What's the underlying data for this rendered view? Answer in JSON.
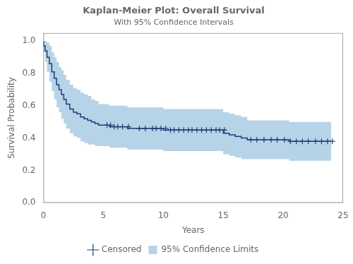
{
  "chart_data": {
    "type": "line",
    "title": "Kaplan-Meier Plot: Overall Survival",
    "subtitle": "With 95% Confidence Intervals",
    "xlabel": "Years",
    "ylabel": "Survival Probability",
    "xlim": [
      0,
      25
    ],
    "ylim": [
      0.0,
      1.05
    ],
    "xticks": [
      0,
      5,
      10,
      15,
      20,
      25
    ],
    "yticks": [
      {
        "value": 0.0,
        "label": "0.0"
      },
      0.2,
      0.4,
      0.6,
      0.8,
      {
        "value": 1.0,
        "label": "1.0"
      }
    ],
    "grid": false,
    "legend": "bottom",
    "x": [
      0.0,
      0.15,
      0.3,
      0.5,
      0.7,
      0.9,
      1.1,
      1.3,
      1.5,
      1.7,
      1.9,
      2.2,
      2.5,
      2.8,
      3.1,
      3.4,
      3.7,
      4.0,
      4.3,
      4.6,
      4.9,
      5.2,
      5.5,
      5.8,
      6.1,
      6.5,
      7.0,
      7.5,
      8.0,
      8.5,
      9.0,
      9.5,
      10.0,
      10.5,
      11.0,
      11.5,
      12.0,
      12.5,
      13.0,
      13.5,
      14.0,
      14.5,
      15.0,
      15.5,
      16.0,
      16.5,
      17.0,
      17.5,
      18.0,
      18.5,
      19.0,
      19.5,
      20.0,
      20.5,
      21.0,
      21.5,
      22.0,
      22.5,
      23.0,
      23.5,
      24.0
    ],
    "series": [
      {
        "type": "line",
        "line_style": "step",
        "color": "#1f3d7a",
        "values": [
          1.0,
          0.97,
          0.94,
          0.9,
          0.86,
          0.81,
          0.77,
          0.73,
          0.7,
          0.67,
          0.64,
          0.61,
          0.58,
          0.56,
          0.55,
          0.53,
          0.52,
          0.51,
          0.5,
          0.49,
          0.48,
          0.48,
          0.48,
          0.47,
          0.47,
          0.47,
          0.47,
          0.46,
          0.46,
          0.46,
          0.46,
          0.46,
          0.46,
          0.45,
          0.45,
          0.45,
          0.45,
          0.45,
          0.45,
          0.45,
          0.45,
          0.45,
          0.45,
          0.43,
          0.42,
          0.41,
          0.4,
          0.39,
          0.39,
          0.39,
          0.39,
          0.39,
          0.39,
          0.39,
          0.38,
          0.38,
          0.38,
          0.38,
          0.38,
          0.38,
          0.38
        ]
      },
      {
        "name": "Censored",
        "type": "scatter",
        "marker": "plus",
        "color": "#1f3d7a",
        "x": [
          5.3,
          5.6,
          5.9,
          6.2,
          6.6,
          7.1,
          8.0,
          8.5,
          9.1,
          9.4,
          9.8,
          10.2,
          10.6,
          10.9,
          11.3,
          11.7,
          12.1,
          12.4,
          12.8,
          13.2,
          13.6,
          14.0,
          14.4,
          14.7,
          15.1,
          17.3,
          17.8,
          18.4,
          19.0,
          19.5,
          20.1,
          20.6,
          21.1,
          21.6,
          22.1,
          22.7,
          23.2,
          23.7,
          24.1
        ],
        "values": [
          0.48,
          0.48,
          0.47,
          0.47,
          0.47,
          0.47,
          0.46,
          0.46,
          0.46,
          0.46,
          0.46,
          0.46,
          0.45,
          0.45,
          0.45,
          0.45,
          0.45,
          0.45,
          0.45,
          0.45,
          0.45,
          0.45,
          0.45,
          0.45,
          0.45,
          0.39,
          0.39,
          0.39,
          0.39,
          0.39,
          0.39,
          0.38,
          0.38,
          0.38,
          0.38,
          0.38,
          0.38,
          0.38,
          0.38
        ]
      },
      {
        "name": "95% Confidence Limits",
        "type": "area",
        "line_style": "step",
        "color": "#7bafd4",
        "lower": [
          1.0,
          0.93,
          0.87,
          0.81,
          0.75,
          0.69,
          0.64,
          0.59,
          0.56,
          0.52,
          0.49,
          0.46,
          0.43,
          0.41,
          0.4,
          0.38,
          0.37,
          0.36,
          0.36,
          0.35,
          0.35,
          0.35,
          0.35,
          0.34,
          0.34,
          0.34,
          0.34,
          0.33,
          0.33,
          0.33,
          0.33,
          0.33,
          0.33,
          0.32,
          0.32,
          0.32,
          0.32,
          0.32,
          0.32,
          0.32,
          0.32,
          0.32,
          0.32,
          0.3,
          0.29,
          0.28,
          0.27,
          0.27,
          0.27,
          0.27,
          0.27,
          0.27,
          0.27,
          0.27,
          0.26,
          0.26,
          0.26,
          0.26,
          0.26,
          0.26,
          0.26
        ],
        "upper": [
          1.0,
          1.0,
          1.0,
          0.99,
          0.97,
          0.93,
          0.9,
          0.87,
          0.84,
          0.82,
          0.79,
          0.76,
          0.73,
          0.71,
          0.7,
          0.68,
          0.67,
          0.66,
          0.64,
          0.63,
          0.61,
          0.61,
          0.61,
          0.6,
          0.6,
          0.6,
          0.6,
          0.59,
          0.59,
          0.59,
          0.59,
          0.59,
          0.59,
          0.58,
          0.58,
          0.58,
          0.58,
          0.58,
          0.58,
          0.58,
          0.58,
          0.58,
          0.58,
          0.56,
          0.55,
          0.54,
          0.53,
          0.51,
          0.51,
          0.51,
          0.51,
          0.51,
          0.51,
          0.51,
          0.5,
          0.5,
          0.5,
          0.5,
          0.5,
          0.5,
          0.5
        ]
      }
    ]
  }
}
